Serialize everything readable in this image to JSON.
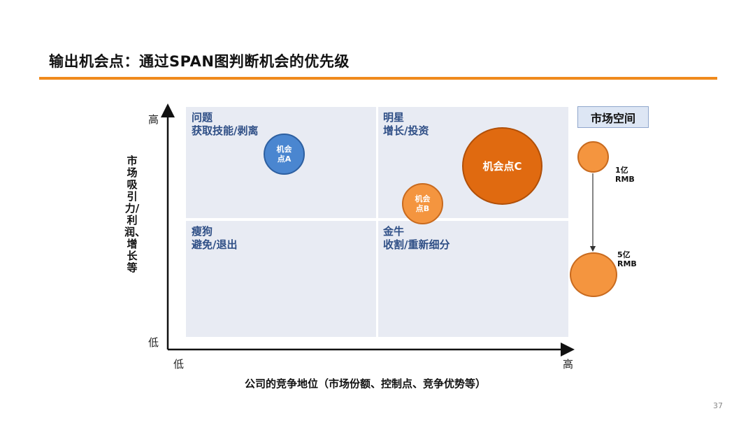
{
  "title": "输出机会点：通过SPAN图判断机会的优先级",
  "quadrants": {
    "top_left": {
      "title": "问题",
      "subtitle": "获取技能/剥离"
    },
    "top_right": {
      "title": "明星",
      "subtitle": "增长/投资"
    },
    "bottom_left": {
      "title": "瘦狗",
      "subtitle": "避免/退出"
    },
    "bottom_right": {
      "title": "金牛",
      "subtitle": "收割/重新细分"
    }
  },
  "y_axis": {
    "label": "市场吸引力/利润、增长等",
    "high": "高",
    "low": "低"
  },
  "x_axis": {
    "label": "公司的竞争地位（市场份额、控制点、竞争优势等）",
    "low": "低",
    "high": "高"
  },
  "bubbles": {
    "a": {
      "label": "机会点A",
      "color": "#4a86d0"
    },
    "b": {
      "label": "机会点B",
      "color": "#f4953f"
    },
    "c": {
      "label": "机会点C",
      "color": "#e06a10"
    }
  },
  "legend": {
    "title": "市场空间",
    "small": "1亿\nRMB",
    "large": "5亿\nRMB"
  },
  "page_number": "37"
}
